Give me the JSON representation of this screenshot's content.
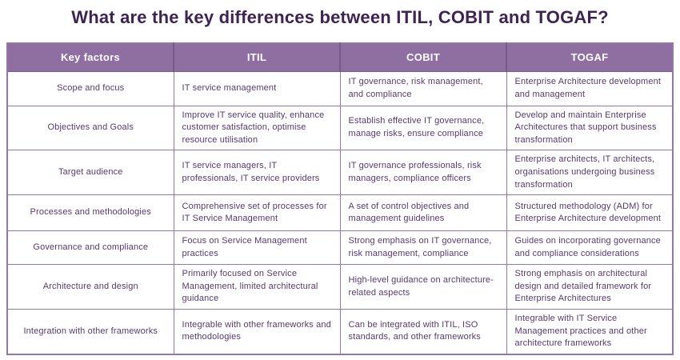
{
  "page": {
    "title": "What are the key differences between ITIL, COBIT and TOGAF?"
  },
  "colors": {
    "background": "#ffffff",
    "title_text": "#3d2453",
    "header_bg": "#8f6fa2",
    "header_text": "#ffffff",
    "header_divider": "#7a5a8a",
    "border": "#9377a6",
    "body_text": "#563a70"
  },
  "chart_data": {
    "type": "table",
    "title": "What are the key differences between ITIL, COBIT and TOGAF?",
    "columns": [
      "Key factors",
      "ITIL",
      "COBIT",
      "TOGAF"
    ],
    "rows": [
      [
        "Scope and focus",
        "IT service management",
        "IT governance, risk management, and compliance",
        "Enterprise Architecture development and management"
      ],
      [
        "Objectives and Goals",
        "Improve IT service quality, enhance customer satisfaction, optimise resource utilisation",
        "Establish effective IT governance, manage risks, ensure compliance",
        "Develop and maintain Enterprise Architectures that support business transformation"
      ],
      [
        "Target audience",
        "IT service managers, IT professionals, IT service providers",
        "IT governance professionals, risk managers, compliance officers",
        "Enterprise architects, IT architects, organisations undergoing business transformation"
      ],
      [
        "Processes and methodologies",
        "Comprehensive set of processes for IT Service Management",
        "A set of control objectives and management guidelines",
        "Structured methodology (ADM) for Enterprise Architecture development"
      ],
      [
        "Governance and compliance",
        "Focus on Service Management practices",
        "Strong emphasis on IT governance, risk management, compliance",
        "Guides on incorporating governance and compliance considerations"
      ],
      [
        "Architecture and design",
        "Primarily focused on Service Management, limited architectural guidance",
        "High-level guidance on architecture-related aspects",
        "Strong emphasis on architectural design and detailed framework for Enterprise Architectures"
      ],
      [
        "Integration with other frameworks",
        "Integrable with other frameworks and methodologies",
        "Can be integrated with ITIL, ISO standards, and other frameworks",
        "Integrable with IT Service Management practices and other architecture frameworks"
      ]
    ]
  }
}
